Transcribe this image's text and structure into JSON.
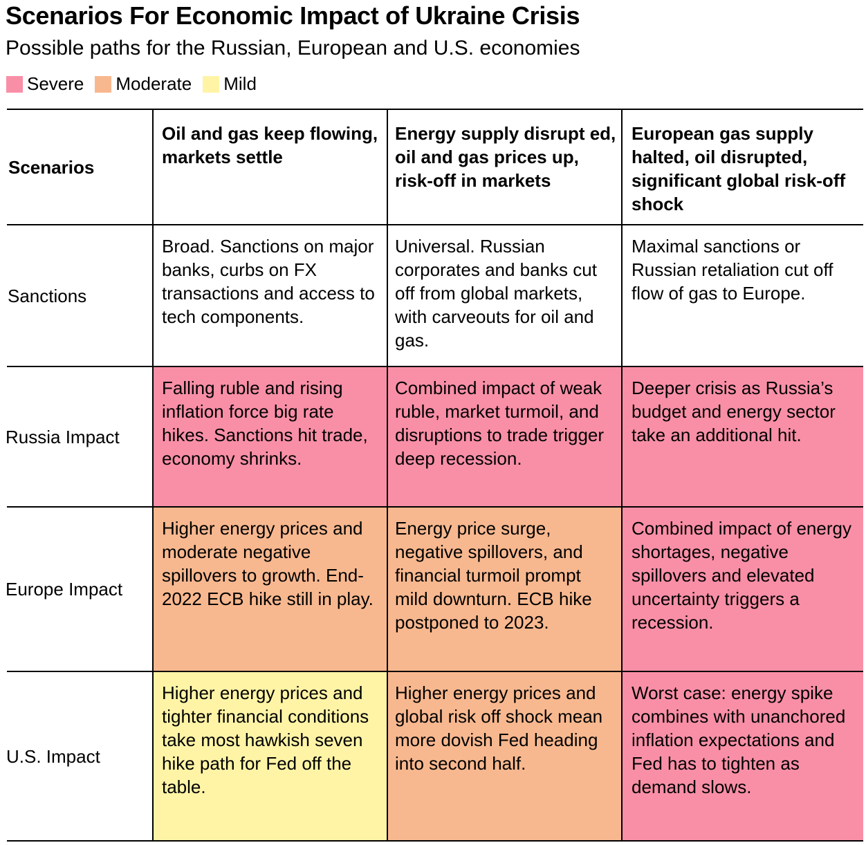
{
  "title": "Scenarios For Economic Impact of Ukraine Crisis",
  "subtitle": "Possible paths for the Russian, European and U.S. economies",
  "legend": [
    {
      "label": "Severe",
      "color": "#f98fa7"
    },
    {
      "label": "Moderate",
      "color": "#f8b88f"
    },
    {
      "label": "Mild",
      "color": "#fff4a6"
    }
  ],
  "colors": {
    "severe": "#f98fa7",
    "moderate": "#f8b88f",
    "mild": "#fff4a6",
    "none": "#ffffff"
  },
  "chart_data": {
    "type": "table",
    "title": "Scenarios For Economic Impact of Ukraine Crisis",
    "subtitle": "Possible paths for the Russian, European and U.S. economies",
    "header_label": "Scenarios",
    "columns": [
      "Oil and gas keep flowing, markets settle",
      "Energy supply disrupt ed, oil and gas prices up, risk-off in markets",
      "European gas supply halted, oil disrupted, significant global risk-off shock"
    ],
    "rows": [
      {
        "label": "Sanctions",
        "cells": [
          {
            "text": "Broad. Sanctions on major banks, curbs on FX transactions and access to tech components.",
            "severity": "none"
          },
          {
            "text": "Universal. Russian corporates and banks cut off from global markets, with carveouts for oil and gas.",
            "severity": "none"
          },
          {
            "text": "Maximal sanctions or Russian retaliation cut off flow of gas to Europe.",
            "severity": "none"
          }
        ]
      },
      {
        "label": "Russia Impact",
        "cells": [
          {
            "text": "Falling ruble and rising inflation force big rate hikes. Sanctions hit trade, economy shrinks.",
            "severity": "severe"
          },
          {
            "text": "Combined impact of weak ruble, market turmoil, and disruptions to trade trigger deep recession.",
            "severity": "severe"
          },
          {
            "text": "Deeper crisis as Russia’s budget and energy sector take an additional hit.",
            "severity": "severe"
          }
        ]
      },
      {
        "label": "Europe Impact",
        "cells": [
          {
            "text": "Higher energy prices and moderate negative spillovers to growth. End-2022 ECB hike still in play.",
            "severity": "moderate"
          },
          {
            "text": "Energy price surge, negative spillovers, and financial turmoil prompt mild downturn. ECB hike postponed to 2023.",
            "severity": "moderate"
          },
          {
            "text": "Combined impact of energy shortages, negative spillovers and elevated uncertainty triggers a recession.",
            "severity": "severe"
          }
        ]
      },
      {
        "label": "U.S. Impact",
        "cells": [
          {
            "text": "Higher energy prices and tighter financial conditions take most hawkish seven hike path for Fed off the table.",
            "severity": "mild"
          },
          {
            "text": "Higher energy prices and global risk off shock mean more dovish Fed heading into second half.",
            "severity": "moderate"
          },
          {
            "text": "Worst case: energy spike combines with unanchored inflation expectations and Fed has to tighten as demand slows.",
            "severity": "severe"
          }
        ]
      }
    ]
  }
}
